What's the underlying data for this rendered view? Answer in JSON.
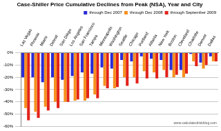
{
  "chart_data": {
    "type": "bar",
    "title": "Case-Shiller Price Cumulative Declines from Peak (NSA), Year and City",
    "annotation": "www.calculatedriskblog.com",
    "categories": [
      "Las Vegas",
      "Phoenix",
      "Miami",
      "Detroit",
      "San Diego",
      "Los Angeles",
      "San Francisco",
      "Tampa",
      "Minneapolis",
      "Washington",
      "Seattle",
      "Chicago",
      "Portland",
      "Atlanta",
      "New York",
      "Boston",
      "Cleveland",
      "Charlotte",
      "Denver",
      "Dallas"
    ],
    "series": [
      {
        "name": "through Dec 2007",
        "color": "#2b2bd6",
        "values": [
          -20,
          -20,
          -24,
          -20,
          -22,
          -19,
          -16,
          -17,
          -12,
          -13,
          -6,
          -7,
          -3,
          -5,
          -6,
          -14,
          -14,
          -1,
          -8,
          -3
        ]
      },
      {
        "name": "through Dec 2008",
        "color": "#f5901e",
        "values": [
          -45,
          -48,
          -44,
          -40,
          -40,
          -39,
          -39,
          -34,
          -27,
          -29,
          -20,
          -20,
          -15,
          -16,
          -14,
          -20,
          -20,
          -7,
          -13,
          -7
        ]
      },
      {
        "name": "through September 2009",
        "color": "#e2231a",
        "values": [
          -55,
          -53,
          -47,
          -45,
          -40,
          -38,
          -37,
          -37,
          -29,
          -28,
          -27,
          -25,
          -21,
          -21,
          -20,
          -18,
          -17,
          -11,
          -10,
          -7
        ]
      }
    ],
    "ylim": [
      -60,
      0
    ],
    "yticks": [
      {
        "value": -60,
        "label": "-60%"
      },
      {
        "value": -50,
        "label": "-50%"
      },
      {
        "value": -40,
        "label": "-40%"
      },
      {
        "value": -30,
        "label": "-30%"
      },
      {
        "value": -20,
        "label": "-20%"
      },
      {
        "value": -10,
        "label": "-10%"
      },
      {
        "value": 0,
        "label": "0%"
      }
    ],
    "grid": true,
    "legend": "top"
  }
}
